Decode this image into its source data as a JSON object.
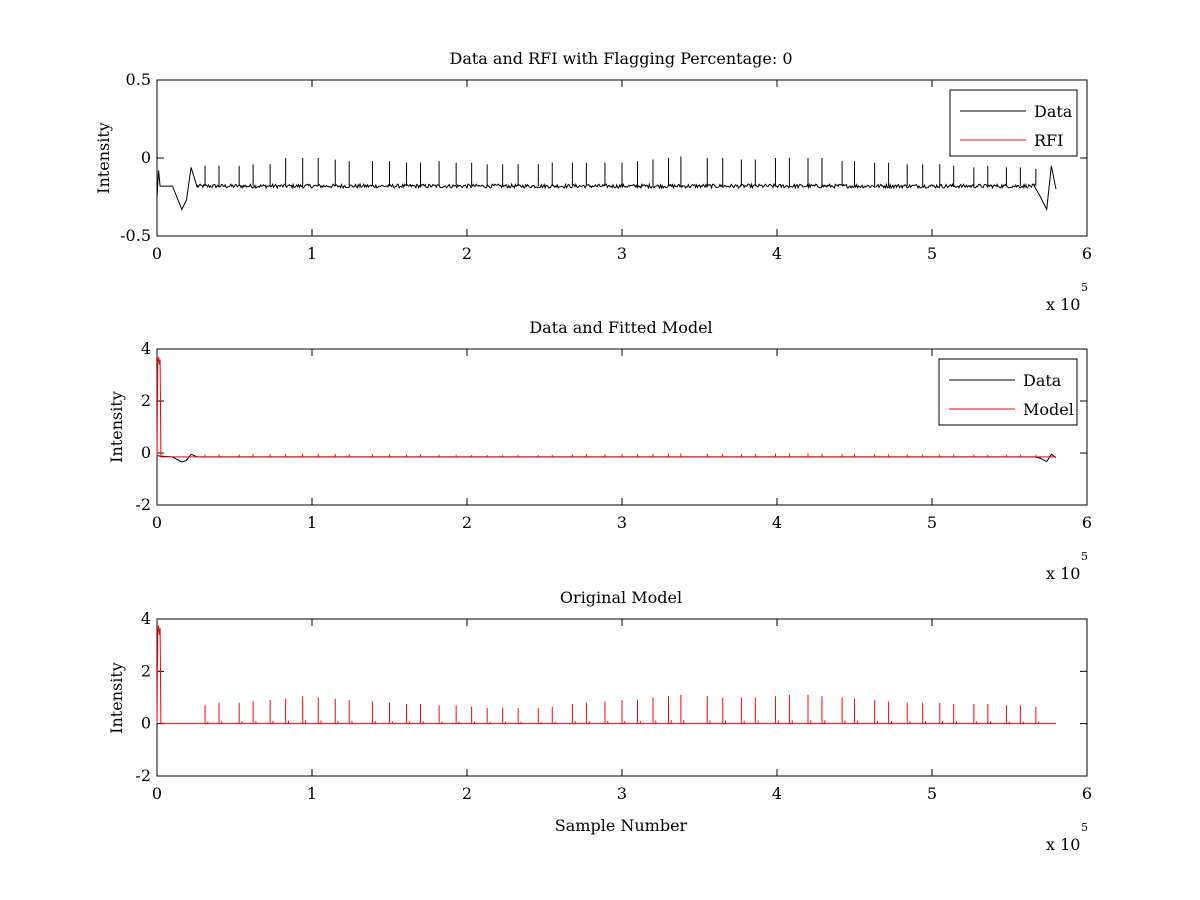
{
  "figure": {
    "background": "#ffffff"
  },
  "colors": {
    "data": "#000000",
    "rfi": "#ff0000",
    "model": "#ff0000",
    "axes": "#000000"
  },
  "chart_data": [
    {
      "type": "line",
      "title": "Data and RFI with Flagging Percentage: 0",
      "xlabel": "",
      "ylabel": "Intensity",
      "xlim": [
        0,
        6
      ],
      "ylim": [
        -0.5,
        0.5
      ],
      "xticks": [
        "0",
        "1",
        "2",
        "3",
        "4",
        "5",
        "6"
      ],
      "yticks": [
        "-0.5",
        "0",
        "0.5"
      ],
      "ytick_values": [
        -0.5,
        0,
        0.5
      ],
      "x_multiplier": {
        "base": "x 10",
        "exponent": "5"
      },
      "legend": {
        "placement": "top-right",
        "entries": [
          "Data",
          "RFI"
        ]
      },
      "baseline": -0.18,
      "x_end": 5.8,
      "series": [
        {
          "name": "Data",
          "color": "#000000",
          "spikes": {
            "x": [
              0.31,
              0.4,
              0.53,
              0.62,
              0.73,
              0.83,
              0.94,
              1.04,
              1.15,
              1.24,
              1.39,
              1.5,
              1.61,
              1.7,
              1.82,
              1.93,
              2.03,
              2.13,
              2.23,
              2.33,
              2.46,
              2.55,
              2.68,
              2.77,
              2.89,
              3.0,
              3.1,
              3.2,
              3.3,
              3.38,
              3.55,
              3.65,
              3.77,
              3.86,
              3.99,
              4.08,
              4.2,
              4.29,
              4.42,
              4.5,
              4.63,
              4.72,
              4.84,
              4.94,
              5.05,
              5.14,
              5.27,
              5.36,
              5.48,
              5.57,
              5.67
            ],
            "y": [
              -0.05,
              -0.05,
              -0.05,
              -0.04,
              -0.04,
              0.0,
              0.0,
              0.0,
              -0.01,
              -0.02,
              -0.02,
              -0.02,
              -0.03,
              -0.03,
              -0.02,
              -0.03,
              -0.03,
              -0.04,
              -0.04,
              -0.04,
              -0.04,
              -0.03,
              -0.03,
              -0.03,
              -0.03,
              -0.03,
              -0.02,
              -0.01,
              0.0,
              0.01,
              0.0,
              0.0,
              -0.01,
              -0.01,
              0.0,
              0.0,
              0.0,
              0.0,
              -0.02,
              -0.02,
              -0.03,
              -0.03,
              -0.04,
              -0.04,
              -0.04,
              -0.05,
              -0.06,
              -0.05,
              -0.06,
              -0.06,
              -0.07
            ]
          },
          "edge_features": {
            "x": [
              0.0,
              0.01,
              0.02,
              0.1,
              0.16,
              0.19,
              0.22,
              0.26,
              5.66,
              5.7,
              5.74,
              5.77,
              5.8
            ],
            "y": [
              -0.25,
              -0.08,
              -0.18,
              -0.18,
              -0.33,
              -0.27,
              -0.06,
              -0.19,
              -0.18,
              -0.25,
              -0.33,
              -0.05,
              -0.2
            ]
          }
        },
        {
          "name": "RFI",
          "color": "#ff0000",
          "values": []
        }
      ]
    },
    {
      "type": "line",
      "title": "Data and Fitted Model",
      "xlabel": "",
      "ylabel": "Intensity",
      "xlim": [
        0,
        6
      ],
      "ylim": [
        -2,
        4
      ],
      "xticks": [
        "0",
        "1",
        "2",
        "3",
        "4",
        "5",
        "6"
      ],
      "yticks": [
        "-2",
        "0",
        "2",
        "4"
      ],
      "ytick_values": [
        -2,
        0,
        2,
        4
      ],
      "x_multiplier": {
        "base": "x 10",
        "exponent": "5"
      },
      "legend": {
        "placement": "top-right",
        "entries": [
          "Data",
          "Model"
        ]
      },
      "baseline": -0.15,
      "x_end": 5.8,
      "initial_spike": {
        "x": [
          0.005,
          0.01,
          0.015,
          0.02
        ],
        "y": [
          3.5,
          3.7,
          3.4,
          3.6
        ]
      },
      "series": [
        {
          "name": "Data",
          "color": "#000000"
        },
        {
          "name": "Model",
          "color": "#ff0000"
        }
      ]
    },
    {
      "type": "line",
      "title": "Original Model",
      "xlabel": "Sample Number",
      "ylabel": "Intensity",
      "xlim": [
        0,
        6
      ],
      "ylim": [
        -2,
        4
      ],
      "xticks": [
        "0",
        "1",
        "2",
        "3",
        "4",
        "5",
        "6"
      ],
      "yticks": [
        "-2",
        "0",
        "2",
        "4"
      ],
      "ytick_values": [
        -2,
        0,
        2,
        4
      ],
      "x_multiplier": {
        "base": "x 10",
        "exponent": "5"
      },
      "baseline": 0.0,
      "x_end": 5.8,
      "initial_spike": {
        "x": [
          0.005,
          0.01,
          0.015,
          0.02
        ],
        "y": [
          3.5,
          3.75,
          3.4,
          3.65
        ]
      },
      "series": [
        {
          "name": "Model",
          "color": "#ff0000",
          "spikes": {
            "x": [
              0.31,
              0.4,
              0.53,
              0.62,
              0.73,
              0.83,
              0.94,
              1.04,
              1.15,
              1.24,
              1.39,
              1.5,
              1.61,
              1.7,
              1.82,
              1.93,
              2.03,
              2.13,
              2.23,
              2.33,
              2.46,
              2.55,
              2.68,
              2.77,
              2.89,
              3.0,
              3.1,
              3.2,
              3.3,
              3.38,
              3.55,
              3.65,
              3.77,
              3.86,
              3.99,
              4.08,
              4.2,
              4.29,
              4.42,
              4.5,
              4.63,
              4.72,
              4.84,
              4.94,
              5.05,
              5.14,
              5.27,
              5.36,
              5.48,
              5.57,
              5.67
            ],
            "y": [
              0.7,
              0.8,
              0.8,
              0.85,
              0.9,
              0.95,
              1.05,
              1.0,
              0.95,
              0.9,
              0.85,
              0.8,
              0.75,
              0.75,
              0.7,
              0.7,
              0.65,
              0.6,
              0.6,
              0.6,
              0.6,
              0.65,
              0.75,
              0.8,
              0.85,
              0.9,
              0.9,
              1.0,
              1.05,
              1.1,
              1.05,
              1.0,
              1.0,
              1.0,
              1.05,
              1.1,
              1.1,
              1.05,
              1.0,
              0.95,
              0.9,
              0.85,
              0.8,
              0.8,
              0.8,
              0.75,
              0.75,
              0.75,
              0.7,
              0.7,
              0.65
            ]
          }
        }
      ]
    }
  ]
}
